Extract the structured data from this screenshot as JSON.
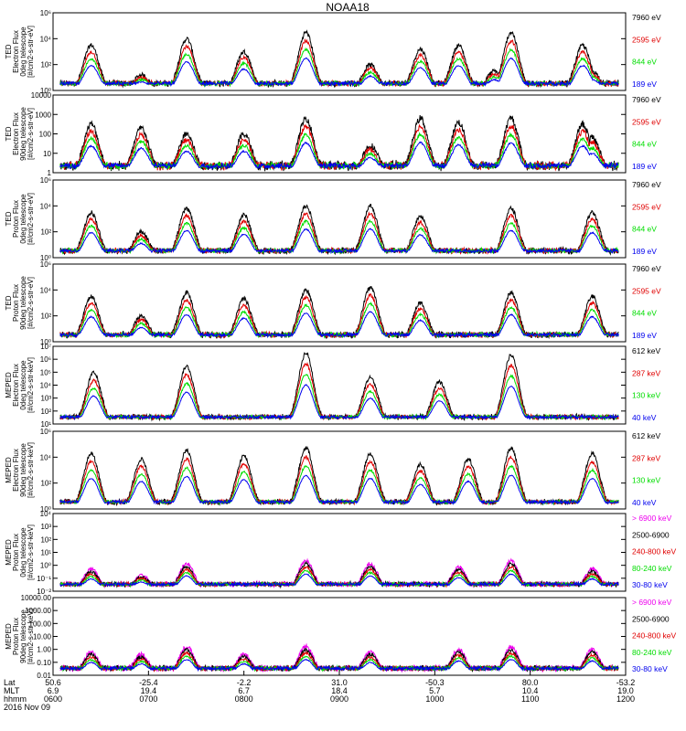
{
  "title": "NOAA18",
  "colors": {
    "black": "#000000",
    "red": "#e00000",
    "green": "#00dd00",
    "blue": "#0000ee",
    "magenta": "#ee00ee"
  },
  "time_axis": {
    "row_labels": [
      "Lat",
      "MLT",
      "hhmm",
      "2016 Nov 09"
    ],
    "ticks": [
      {
        "hhmm": "0600",
        "lat": "50.6",
        "mlt": "6.9"
      },
      {
        "hhmm": "0700",
        "lat": "-25.4",
        "mlt": "19.4"
      },
      {
        "hhmm": "0800",
        "lat": "-2.2",
        "mlt": "6.7"
      },
      {
        "hhmm": "0900",
        "lat": "31.0",
        "mlt": "18.4"
      },
      {
        "hhmm": "1000",
        "lat": "-50.3",
        "mlt": "5.7"
      },
      {
        "hhmm": "1100",
        "lat": "80.0",
        "mlt": "10.4"
      },
      {
        "hhmm": "1200",
        "lat": "-53.2",
        "mlt": "19.0"
      }
    ]
  },
  "chart_data": [
    {
      "type": "line",
      "ylabel": [
        "TED",
        "Electron Flux",
        "0deg telescope",
        "[#/cm2-s-str-eV]"
      ],
      "y_scale": "log",
      "ylim": [
        1,
        1000000
      ],
      "ytick_labels": [
        "10⁰",
        "10²",
        "10⁴",
        "10⁶"
      ],
      "series": [
        {
          "name": "7960 eV",
          "color": "black"
        },
        {
          "name": "2595 eV",
          "color": "red"
        },
        {
          "name": "844 eV",
          "color": "green"
        },
        {
          "name": "189 eV",
          "color": "blue"
        }
      ],
      "events": [
        [
          1.6,
          3.5
        ],
        [
          3.7,
          1.2
        ],
        [
          5.6,
          4.0
        ],
        [
          8.0,
          3.0
        ],
        [
          10.6,
          4.5
        ],
        [
          13.3,
          2.0
        ],
        [
          15.4,
          3.2
        ],
        [
          17.0,
          3.5
        ],
        [
          18.5,
          1.5
        ],
        [
          19.2,
          4.5
        ],
        [
          22.2,
          3.5
        ],
        [
          22.6,
          1.5
        ]
      ]
    },
    {
      "type": "line",
      "ylabel": [
        "TED",
        "Electron Flux",
        "90deg telescope",
        "[#/cm2-s-str-eV]"
      ],
      "y_scale": "log",
      "ylim": [
        1,
        10000
      ],
      "ytick_labels": [
        "1",
        "10",
        "100",
        "1000",
        "10000"
      ],
      "series": [
        {
          "name": "7960 eV",
          "color": "black"
        },
        {
          "name": "2595 eV",
          "color": "red"
        },
        {
          "name": "844 eV",
          "color": "green"
        },
        {
          "name": "189 eV",
          "color": "blue"
        }
      ],
      "events": [
        [
          1.6,
          2.5
        ],
        [
          3.7,
          2.3
        ],
        [
          5.6,
          2.0
        ],
        [
          8.0,
          2.0
        ],
        [
          10.6,
          2.8
        ],
        [
          13.3,
          1.4
        ],
        [
          15.4,
          2.8
        ],
        [
          17.0,
          2.6
        ],
        [
          19.2,
          2.8
        ],
        [
          22.2,
          2.5
        ],
        [
          22.6,
          1.8
        ]
      ]
    },
    {
      "type": "line",
      "ylabel": [
        "TED",
        "Proton Flux",
        "0deg telescope",
        "[#/cm2-s-str-eV]"
      ],
      "y_scale": "log",
      "ylim": [
        1,
        1000000
      ],
      "ytick_labels": [
        "10⁰",
        "10²",
        "10⁴",
        "10⁶"
      ],
      "series": [
        {
          "name": "7960 eV",
          "color": "black"
        },
        {
          "name": "2595 eV",
          "color": "red"
        },
        {
          "name": "844 eV",
          "color": "green"
        },
        {
          "name": "189 eV",
          "color": "blue"
        }
      ],
      "events": [
        [
          1.6,
          3.5
        ],
        [
          3.7,
          2.0
        ],
        [
          5.6,
          3.8
        ],
        [
          8.0,
          3.3
        ],
        [
          10.6,
          4.0
        ],
        [
          13.3,
          4.0
        ],
        [
          15.4,
          3.2
        ],
        [
          19.2,
          3.8
        ],
        [
          22.6,
          3.5
        ]
      ]
    },
    {
      "type": "line",
      "ylabel": [
        "TED",
        "Proton Flux",
        "90deg telescope",
        "[#/cm2-s-str-eV]"
      ],
      "y_scale": "log",
      "ylim": [
        1,
        1000000
      ],
      "ytick_labels": [
        "10⁰",
        "10²",
        "10⁴",
        "10⁶"
      ],
      "series": [
        {
          "name": "7960 eV",
          "color": "black"
        },
        {
          "name": "2595 eV",
          "color": "red"
        },
        {
          "name": "844 eV",
          "color": "green"
        },
        {
          "name": "189 eV",
          "color": "blue"
        }
      ],
      "events": [
        [
          1.6,
          3.5
        ],
        [
          3.7,
          2.0
        ],
        [
          5.6,
          3.8
        ],
        [
          8.0,
          3.3
        ],
        [
          10.6,
          4.0
        ],
        [
          13.3,
          4.2
        ],
        [
          15.4,
          3.0
        ],
        [
          19.2,
          3.8
        ],
        [
          22.6,
          3.5
        ]
      ]
    },
    {
      "type": "line",
      "ylabel": [
        "MEPED",
        "Electron Flux",
        "0deg telescope",
        "[#/cm2-s-str-keV]"
      ],
      "y_scale": "log",
      "ylim": [
        1,
        10000000
      ],
      "ytick_labels": [
        "10¹",
        "10²",
        "10³",
        "10⁴",
        "10⁵",
        "10⁶",
        "10⁷"
      ],
      "series": [
        {
          "name": "612 keV",
          "color": "black"
        },
        {
          "name": "287 keV",
          "color": "red"
        },
        {
          "name": "130 keV",
          "color": "green"
        },
        {
          "name": "40 keV",
          "color": "blue"
        }
      ],
      "events": [
        [
          1.7,
          4.6
        ],
        [
          5.6,
          5.2
        ],
        [
          10.6,
          6.4
        ],
        [
          13.3,
          4.2
        ],
        [
          16.2,
          3.8
        ],
        [
          19.2,
          6.2
        ]
      ]
    },
    {
      "type": "line",
      "ylabel": [
        "MEPED",
        "Electron Flux",
        "90deg telescope",
        "[#/cm2-s-str-keV]"
      ],
      "y_scale": "log",
      "ylim": [
        1,
        10000000
      ],
      "ytick_labels": [
        "10⁰",
        "10²",
        "10⁴",
        "10⁶"
      ],
      "series": [
        {
          "name": "612 keV",
          "color": "black"
        },
        {
          "name": "287 keV",
          "color": "red"
        },
        {
          "name": "130 keV",
          "color": "green"
        },
        {
          "name": "40 keV",
          "color": "blue"
        }
      ],
      "events": [
        [
          1.6,
          5.0
        ],
        [
          3.7,
          4.5
        ],
        [
          5.6,
          5.3
        ],
        [
          8.0,
          4.8
        ],
        [
          10.6,
          5.5
        ],
        [
          13.3,
          5.0
        ],
        [
          15.4,
          4.0
        ],
        [
          17.4,
          4.5
        ],
        [
          19.2,
          5.5
        ],
        [
          22.6,
          5.0
        ]
      ]
    },
    {
      "type": "line",
      "ylabel": [
        "MEPED",
        "Proton Flux",
        "0deg telescope",
        "[#/cm2-s-str-keV]"
      ],
      "y_scale": "log",
      "ylim": [
        0.01,
        100000
      ],
      "ytick_labels": [
        "10⁻²",
        "10⁻¹",
        "10⁰",
        "10¹",
        "10²",
        "10³",
        "10⁴"
      ],
      "series": [
        {
          "name": "> 6900 keV",
          "color": "magenta"
        },
        {
          "name": "2500-6900",
          "color": "black"
        },
        {
          "name": "240-800 keV",
          "color": "red"
        },
        {
          "name": "80-240 keV",
          "color": "green"
        },
        {
          "name": "30-80 keV",
          "color": "blue"
        }
      ],
      "events": [
        [
          1.6,
          2.0
        ],
        [
          3.7,
          1.5
        ],
        [
          5.6,
          2.5
        ],
        [
          10.6,
          2.8
        ],
        [
          13.3,
          2.5
        ],
        [
          17.0,
          2.2
        ],
        [
          19.2,
          2.8
        ],
        [
          22.6,
          2.0
        ]
      ]
    },
    {
      "type": "line",
      "ylabel": [
        "MEPED",
        "Proton Flux",
        "90deg telescope",
        "[#/cm2-s-str-keV]"
      ],
      "y_scale": "log",
      "ylim": [
        0.01,
        10000
      ],
      "ytick_labels": [
        "0.01",
        "0.10",
        "1.00",
        "10.00",
        "100.00",
        "1000.00",
        "10000.00"
      ],
      "series": [
        {
          "name": "> 6900 keV",
          "color": "magenta"
        },
        {
          "name": "2500-6900",
          "color": "black"
        },
        {
          "name": "240-800 keV",
          "color": "red"
        },
        {
          "name": "80-240 keV",
          "color": "green"
        },
        {
          "name": "30-80 keV",
          "color": "blue"
        }
      ],
      "events": [
        [
          1.6,
          1.8
        ],
        [
          3.7,
          1.6
        ],
        [
          5.6,
          2.2
        ],
        [
          8.0,
          1.6
        ],
        [
          10.6,
          2.2
        ],
        [
          13.3,
          1.8
        ],
        [
          17.0,
          2.0
        ],
        [
          19.2,
          2.2
        ],
        [
          22.6,
          2.0
        ]
      ]
    }
  ]
}
